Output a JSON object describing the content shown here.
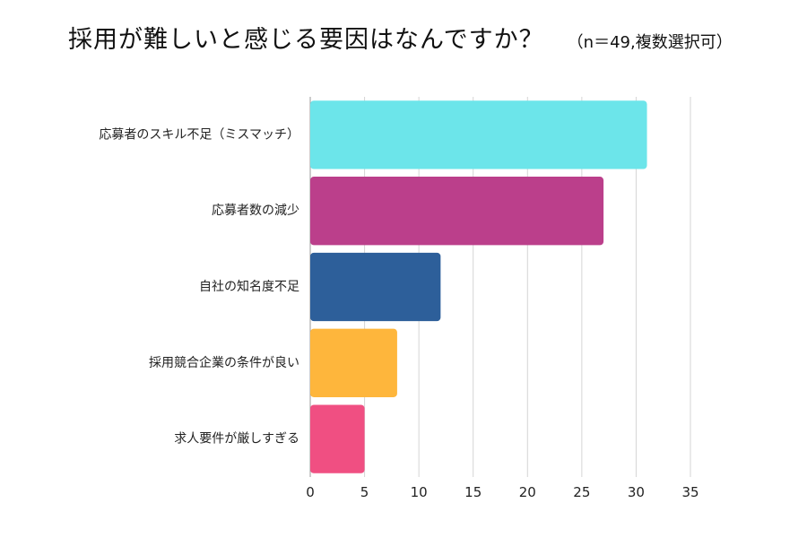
{
  "chart_data": {
    "type": "bar",
    "orientation": "horizontal",
    "title": "採用が難しいと感じる要因はなんですか？",
    "subtitle": "（n＝49,複数選択可）",
    "categories": [
      "応募者のスキル不足（ミスマッチ）",
      "応募者数の減少",
      "自社の知名度不足",
      "採用競合企業の条件が良い",
      "求人要件が厳しすぎる"
    ],
    "values": [
      31,
      27,
      12,
      8,
      5
    ],
    "colors": [
      "#6ce5ea",
      "#bb3f8b",
      "#2d5f9a",
      "#feb63c",
      "#f04f82"
    ],
    "xlim": [
      0,
      35
    ],
    "xticks": [
      0,
      5,
      10,
      15,
      20,
      25,
      30,
      35
    ],
    "grid": true,
    "legend": "none"
  }
}
